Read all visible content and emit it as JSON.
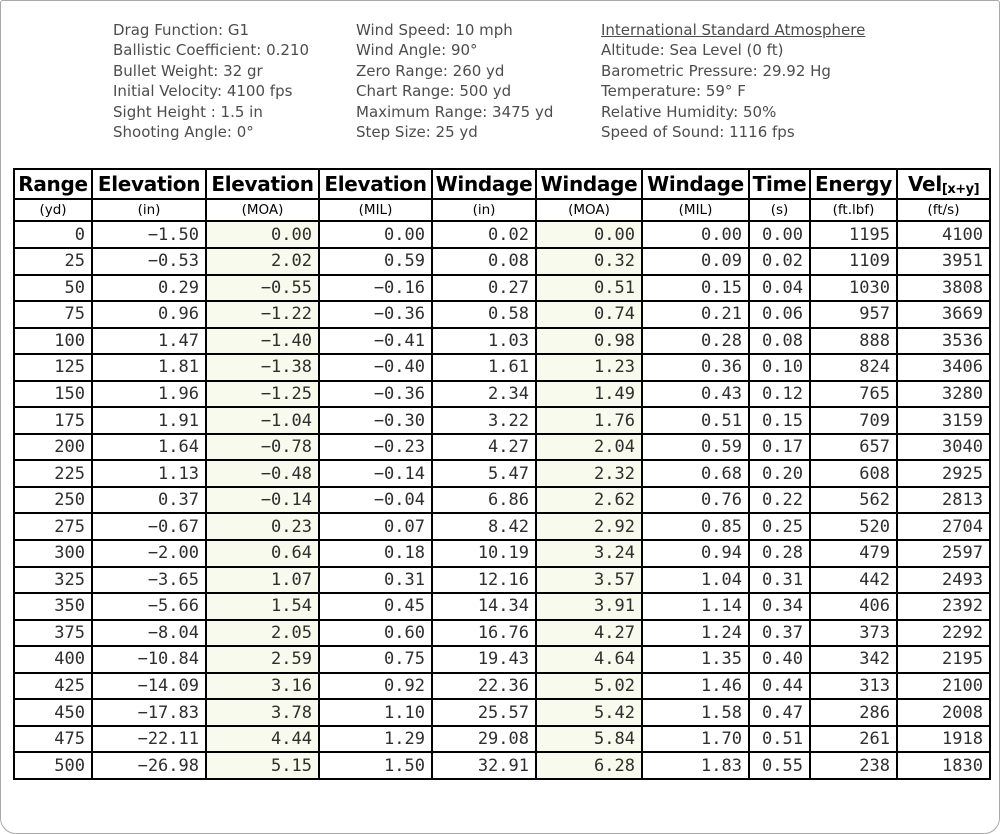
{
  "colors": {
    "moa_column_tint": "#f7faec",
    "table_border": "#000000",
    "info_text": "#4d4d4d",
    "data_text": "#2e2e2e"
  },
  "info": {
    "ballistics": {
      "lines": [
        "Drag Function: G1",
        "Ballistic Coefficient: 0.210",
        "Bullet Weight: 32 gr",
        "Initial Velocity: 4100 fps",
        "Sight Height : 1.5 in",
        "Shooting Angle: 0°"
      ]
    },
    "conditions": {
      "lines": [
        "Wind Speed: 10 mph",
        "Wind Angle: 90°",
        "Zero Range: 260 yd",
        "Chart Range: 500 yd",
        "Maximum Range: 3475 yd",
        "Step Size: 25 yd"
      ]
    },
    "atmosphere": {
      "title": "International Standard Atmosphere",
      "lines": [
        "Altitude: Sea Level (0 ft)",
        "Barometric Pressure: 29.92 Hg",
        "Temperature: 59° F",
        "Relative Humidity: 50%",
        "Speed of Sound: 1116 fps"
      ]
    }
  },
  "table": {
    "columns": [
      {
        "label": "Range",
        "unit": "(yd)"
      },
      {
        "label": "Elevation",
        "unit": "(in)"
      },
      {
        "label": "Elevation",
        "unit": "(MOA)",
        "tint": true
      },
      {
        "label": "Elevation",
        "unit": "(MIL)"
      },
      {
        "label": "Windage",
        "unit": "(in)"
      },
      {
        "label": "Windage",
        "unit": "(MOA)",
        "tint": true
      },
      {
        "label": "Windage",
        "unit": "(MIL)"
      },
      {
        "label": "Time",
        "unit": "(s)"
      },
      {
        "label": "Energy",
        "unit": "(ft.lbf)"
      },
      {
        "label": "Vel",
        "sub": "[x+y]",
        "unit": "(ft/s)"
      }
    ],
    "rows": [
      [
        "0",
        "−1.50",
        "0.00",
        "0.00",
        "0.02",
        "0.00",
        "0.00",
        "0.00",
        "1195",
        "4100"
      ],
      [
        "25",
        "−0.53",
        "2.02",
        "0.59",
        "0.08",
        "0.32",
        "0.09",
        "0.02",
        "1109",
        "3951"
      ],
      [
        "50",
        "0.29",
        "−0.55",
        "−0.16",
        "0.27",
        "0.51",
        "0.15",
        "0.04",
        "1030",
        "3808"
      ],
      [
        "75",
        "0.96",
        "−1.22",
        "−0.36",
        "0.58",
        "0.74",
        "0.21",
        "0.06",
        "957",
        "3669"
      ],
      [
        "100",
        "1.47",
        "−1.40",
        "−0.41",
        "1.03",
        "0.98",
        "0.28",
        "0.08",
        "888",
        "3536"
      ],
      [
        "125",
        "1.81",
        "−1.38",
        "−0.40",
        "1.61",
        "1.23",
        "0.36",
        "0.10",
        "824",
        "3406"
      ],
      [
        "150",
        "1.96",
        "−1.25",
        "−0.36",
        "2.34",
        "1.49",
        "0.43",
        "0.12",
        "765",
        "3280"
      ],
      [
        "175",
        "1.91",
        "−1.04",
        "−0.30",
        "3.22",
        "1.76",
        "0.51",
        "0.15",
        "709",
        "3159"
      ],
      [
        "200",
        "1.64",
        "−0.78",
        "−0.23",
        "4.27",
        "2.04",
        "0.59",
        "0.17",
        "657",
        "3040"
      ],
      [
        "225",
        "1.13",
        "−0.48",
        "−0.14",
        "5.47",
        "2.32",
        "0.68",
        "0.20",
        "608",
        "2925"
      ],
      [
        "250",
        "0.37",
        "−0.14",
        "−0.04",
        "6.86",
        "2.62",
        "0.76",
        "0.22",
        "562",
        "2813"
      ],
      [
        "275",
        "−0.67",
        "0.23",
        "0.07",
        "8.42",
        "2.92",
        "0.85",
        "0.25",
        "520",
        "2704"
      ],
      [
        "300",
        "−2.00",
        "0.64",
        "0.18",
        "10.19",
        "3.24",
        "0.94",
        "0.28",
        "479",
        "2597"
      ],
      [
        "325",
        "−3.65",
        "1.07",
        "0.31",
        "12.16",
        "3.57",
        "1.04",
        "0.31",
        "442",
        "2493"
      ],
      [
        "350",
        "−5.66",
        "1.54",
        "0.45",
        "14.34",
        "3.91",
        "1.14",
        "0.34",
        "406",
        "2392"
      ],
      [
        "375",
        "−8.04",
        "2.05",
        "0.60",
        "16.76",
        "4.27",
        "1.24",
        "0.37",
        "373",
        "2292"
      ],
      [
        "400",
        "−10.84",
        "2.59",
        "0.75",
        "19.43",
        "4.64",
        "1.35",
        "0.40",
        "342",
        "2195"
      ],
      [
        "425",
        "−14.09",
        "3.16",
        "0.92",
        "22.36",
        "5.02",
        "1.46",
        "0.44",
        "313",
        "2100"
      ],
      [
        "450",
        "−17.83",
        "3.78",
        "1.10",
        "25.57",
        "5.42",
        "1.58",
        "0.47",
        "286",
        "2008"
      ],
      [
        "475",
        "−22.11",
        "4.44",
        "1.29",
        "29.08",
        "5.84",
        "1.70",
        "0.51",
        "261",
        "1918"
      ],
      [
        "500",
        "−26.98",
        "5.15",
        "1.50",
        "32.91",
        "6.28",
        "1.83",
        "0.55",
        "238",
        "1830"
      ]
    ]
  }
}
